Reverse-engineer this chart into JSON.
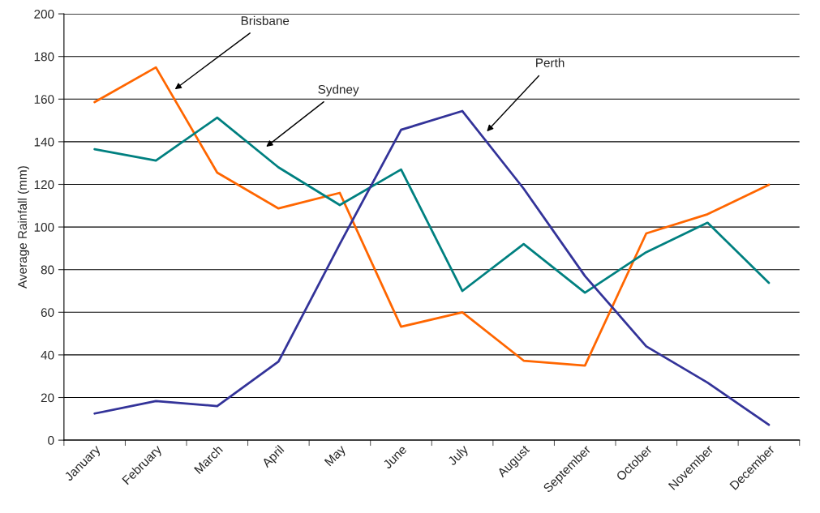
{
  "chart_data": {
    "type": "line",
    "ylabel": "Average Rainfall (mm)",
    "categories": [
      "January",
      "February",
      "March",
      "April",
      "May",
      "June",
      "July",
      "August",
      "September",
      "October",
      "November",
      "December"
    ],
    "series": [
      {
        "name": "Brisbane",
        "color": "#ff6600",
        "values": [
          158.6,
          174.9,
          125.5,
          108.7,
          116,
          53.2,
          60,
          37.3,
          35,
          97,
          106,
          119.8
        ]
      },
      {
        "name": "Sydney",
        "color": "#008080",
        "values": [
          136.5,
          131.2,
          151.3,
          128,
          110.3,
          127,
          70,
          92,
          69.2,
          88.2,
          102,
          73.8
        ]
      },
      {
        "name": "Perth",
        "color": "#333399",
        "values": [
          12.5,
          18.3,
          16,
          36.9,
          92,
          145.6,
          154.4,
          118,
          77,
          44,
          27,
          7.2
        ]
      }
    ],
    "ylim": [
      0,
      200
    ],
    "yticks": [
      0,
      20,
      40,
      60,
      80,
      100,
      120,
      140,
      160,
      180,
      200
    ],
    "grid": "y",
    "legend": false,
    "marker": "none",
    "line_style": "solid"
  }
}
